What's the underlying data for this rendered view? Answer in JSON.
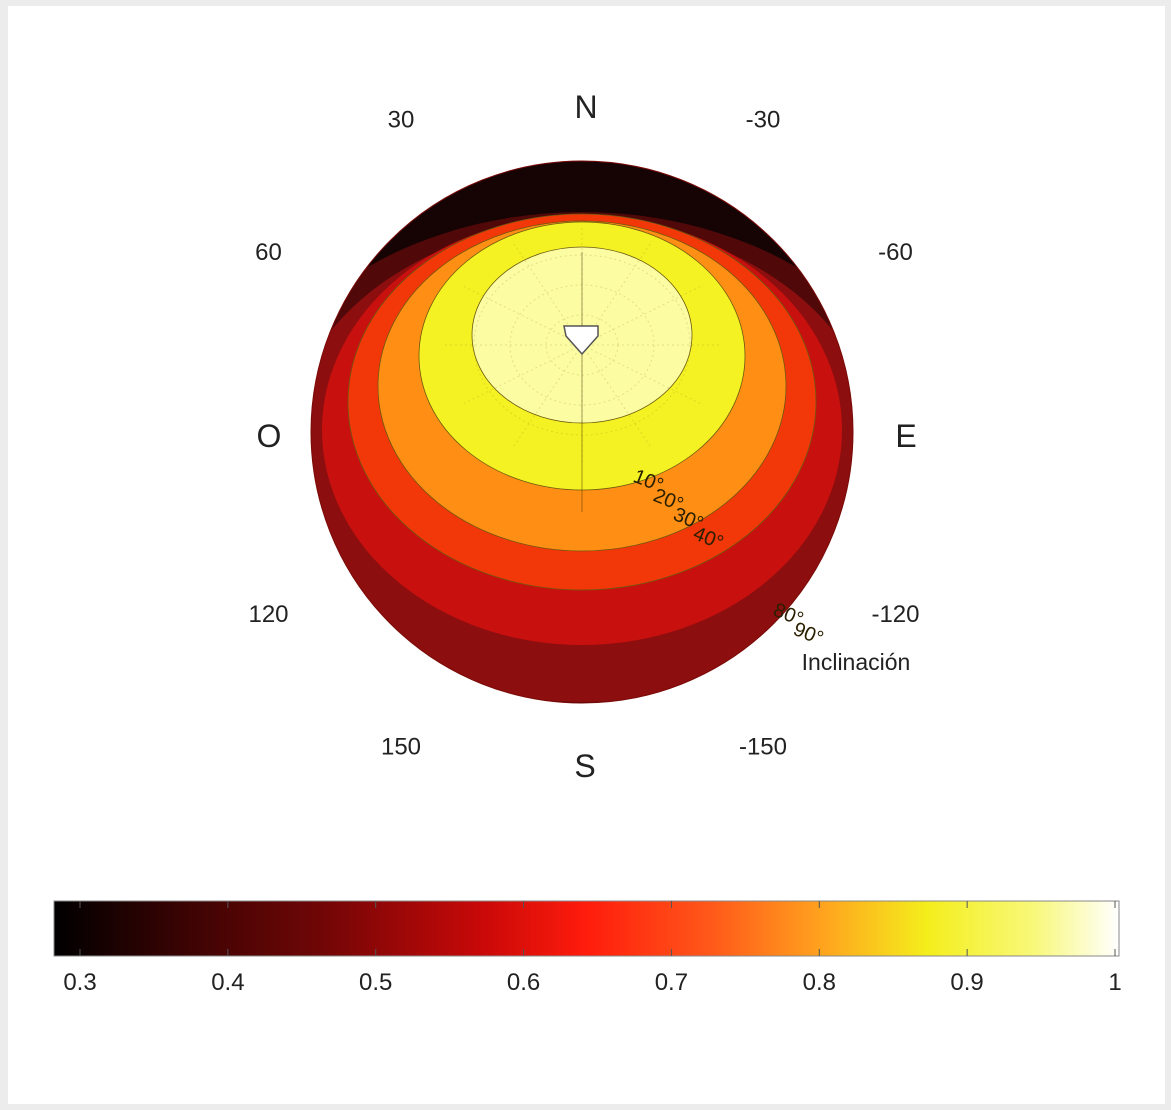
{
  "chart_data": {
    "type": "heatmap",
    "projection": "polar",
    "title": "",
    "cardinals": {
      "north": "N",
      "south": "S",
      "east": "E",
      "west": "O"
    },
    "azimuth_ticks": [
      {
        "value": 30,
        "label": "30"
      },
      {
        "value": -30,
        "label": "-30"
      },
      {
        "value": 60,
        "label": "60"
      },
      {
        "value": -60,
        "label": "-60"
      },
      {
        "value": 120,
        "label": "120"
      },
      {
        "value": -120,
        "label": "-120"
      },
      {
        "value": 150,
        "label": "150"
      },
      {
        "value": -150,
        "label": "-150"
      }
    ],
    "inclination_label": "Inclinación",
    "inclination_ticks": [
      {
        "value": 10,
        "label": "10°"
      },
      {
        "value": 20,
        "label": "20°"
      },
      {
        "value": 30,
        "label": "30°"
      },
      {
        "value": 40,
        "label": "40°"
      },
      {
        "value": 80,
        "label": "80°"
      },
      {
        "value": 90,
        "label": "90°"
      }
    ],
    "contour_levels": [
      {
        "value": 0.3,
        "color": "#160404"
      },
      {
        "value": 0.4,
        "color": "#500808"
      },
      {
        "value": 0.5,
        "color": "#8c0e0e"
      },
      {
        "value": 0.6,
        "color": "#c8110e"
      },
      {
        "value": 0.7,
        "color": "#f23708"
      },
      {
        "value": 0.8,
        "color": "#ff8e14"
      },
      {
        "value": 0.9,
        "color": "#f4f222"
      },
      {
        "value": 1.0,
        "color": "#fcfca2"
      }
    ],
    "maximum": {
      "value": 1.0,
      "azimuth": 0,
      "inclination": 30
    },
    "colorbar": {
      "min": 0.3,
      "max": 1.0,
      "ticks": [
        {
          "value": 0.3,
          "label": "0.3"
        },
        {
          "value": 0.4,
          "label": "0.4"
        },
        {
          "value": 0.5,
          "label": "0.5"
        },
        {
          "value": 0.6,
          "label": "0.6"
        },
        {
          "value": 0.7,
          "label": "0.7"
        },
        {
          "value": 0.8,
          "label": "0.8"
        },
        {
          "value": 0.9,
          "label": "0.9"
        },
        {
          "value": 1.0,
          "label": "1"
        }
      ]
    },
    "grid": true
  }
}
